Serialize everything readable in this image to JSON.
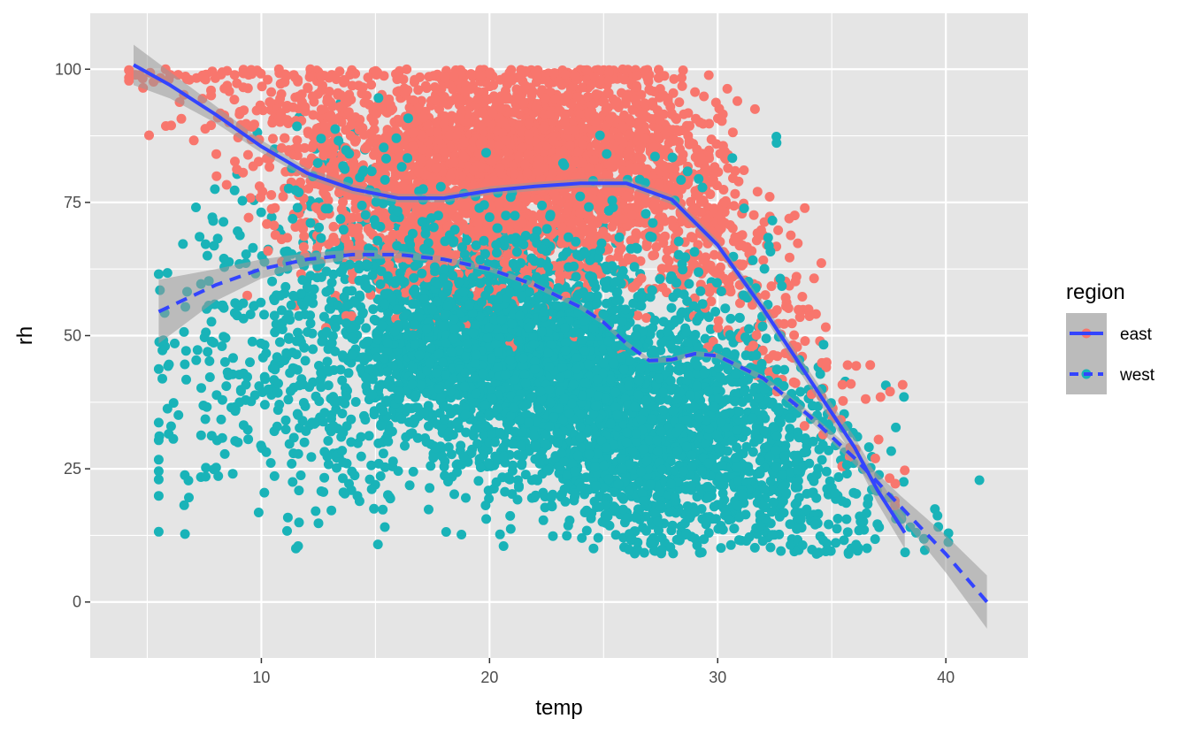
{
  "chart_data": {
    "type": "scatter",
    "title": "",
    "xlabel": "temp",
    "ylabel": "rh",
    "xlim": [
      2.5,
      43.6
    ],
    "ylim": [
      -10.5,
      110.5
    ],
    "x_ticks": [
      10,
      20,
      30,
      40
    ],
    "y_ticks": [
      0,
      25,
      50,
      75,
      100
    ],
    "x_tick_labels": [
      "10",
      "20",
      "30",
      "40"
    ],
    "y_tick_labels": [
      "0",
      "25",
      "50",
      "75",
      "100"
    ],
    "grid": true,
    "background": "#e5e5e5",
    "legend": {
      "title": "region",
      "placement": "right",
      "entries": [
        "east",
        "west"
      ]
    },
    "series": [
      {
        "name": "east",
        "color": "#f8766d",
        "point_cloud": {
          "temp_range": [
            4.2,
            38.2
          ],
          "rh_range": [
            10.0,
            100.0
          ],
          "dense_core": {
            "temp": [
              11,
              33
            ],
            "rh": [
              45,
              100
            ]
          },
          "count_estimate": 9000
        },
        "smooth": {
          "linetype": "solid",
          "color": "#3344ff",
          "x": [
            4.4,
            6,
            8,
            10,
            12,
            14,
            16,
            18,
            20,
            22,
            24,
            26,
            28,
            30,
            32,
            34,
            36,
            37,
            38.2
          ],
          "y": [
            100.8,
            97,
            91.5,
            85.5,
            80.5,
            77.5,
            75.8,
            75.8,
            77.2,
            78,
            78.6,
            78.6,
            75.5,
            67,
            55,
            42,
            29,
            21,
            13
          ],
          "se": [
            3.8,
            2.5,
            1.6,
            1.2,
            1.0,
            0.9,
            0.8,
            0.8,
            0.8,
            0.8,
            0.8,
            0.8,
            0.9,
            1.0,
            1.2,
            1.5,
            2.0,
            2.4,
            3.0
          ]
        }
      },
      {
        "name": "west",
        "color": "#19b3b8",
        "point_cloud": {
          "temp_range": [
            5.5,
            41.8
          ],
          "rh_range": [
            7.0,
            100.0
          ],
          "dense_core": {
            "temp": [
              14,
              36
            ],
            "rh": [
              10,
              60
            ]
          },
          "count_estimate": 12000
        },
        "smooth": {
          "linetype": "dashed",
          "color": "#3344ff",
          "x": [
            5.5,
            8,
            10,
            12,
            14,
            16,
            18,
            20,
            22,
            24,
            25,
            26,
            27,
            28,
            29,
            30,
            32,
            34,
            36,
            38,
            40,
            41.8
          ],
          "y": [
            54.5,
            59.5,
            62.5,
            64.3,
            65.2,
            65.2,
            64.3,
            62.5,
            59.5,
            55.3,
            52.5,
            48.5,
            45.3,
            45.5,
            46.6,
            46.2,
            42,
            35,
            27,
            18,
            9,
            0
          ],
          "se": [
            6.0,
            3.0,
            1.8,
            1.2,
            0.9,
            0.7,
            0.6,
            0.5,
            0.5,
            0.5,
            0.5,
            0.5,
            0.5,
            0.5,
            0.5,
            0.5,
            0.6,
            0.8,
            1.2,
            2.0,
            3.5,
            5.0
          ]
        }
      }
    ],
    "se_band_color": "#999999"
  }
}
